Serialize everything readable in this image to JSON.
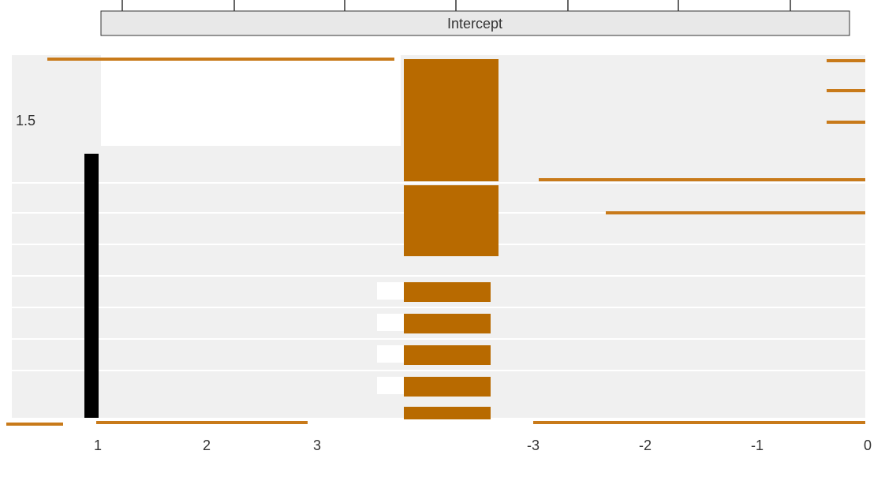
{
  "strip": {
    "title": "Intercept"
  },
  "left_labels": [
    "1.5"
  ],
  "axis": {
    "labels": [
      "1",
      "2",
      "3",
      "-3",
      "-2",
      "-1",
      "0"
    ]
  }
}
